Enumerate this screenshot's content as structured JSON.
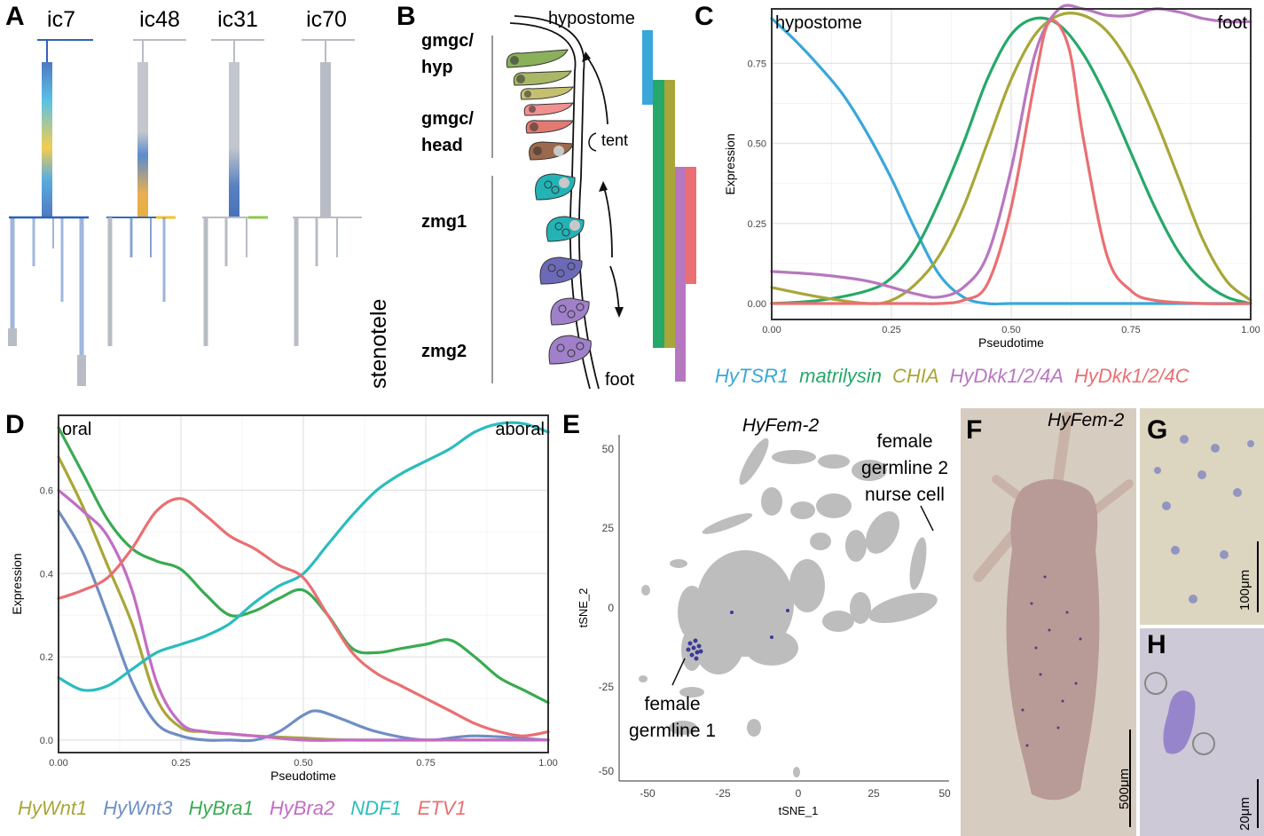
{
  "panels": {
    "A": {
      "letter": "A",
      "tree_titles": [
        "ic7",
        "ic48",
        "ic31",
        "ic70"
      ],
      "side_label": "stenotele"
    },
    "B": {
      "letter": "B",
      "top_label": "hypostome",
      "bottom_label": "foot",
      "tent_label": "tent",
      "stage_labels": [
        "gmgc/\nhyp",
        "gmgc/\nhead",
        "zmg1",
        "zmg2"
      ],
      "colors": {
        "blue": "#3aa7da",
        "green": "#26a86a",
        "olive": "#a8a638",
        "pink": "#ea6f72",
        "purple": "#b777c0"
      }
    },
    "C": {
      "letter": "C",
      "corner_left": "hypostome",
      "corner_right": "foot",
      "legend": [
        {
          "name": "HyTSR1",
          "color": "#3aa7da"
        },
        {
          "name": "matrilysin",
          "color": "#26a86a"
        },
        {
          "name": "CHIA",
          "color": "#a8a638"
        },
        {
          "name": "HyDkk1/2/4A",
          "color": "#b777c0"
        },
        {
          "name": "HyDkk1/2/4C",
          "color": "#ea6f72"
        }
      ]
    },
    "D": {
      "letter": "D",
      "corner_left": "oral",
      "corner_right": "aboral",
      "legend": [
        {
          "name": "HyWnt1",
          "color": "#a8a638"
        },
        {
          "name": "HyWnt3",
          "color": "#6e8ec4"
        },
        {
          "name": "HyBra1",
          "color": "#3aaa52"
        },
        {
          "name": "HyBra2",
          "color": "#c36cc4"
        },
        {
          "name": "NDF1",
          "color": "#2bbcbf"
        },
        {
          "name": "ETV1",
          "color": "#ea6f72"
        }
      ]
    },
    "E": {
      "letter": "E",
      "title": "HyFem-2",
      "annotation_1": "female germline 1",
      "annotation_2": "female germline 2 nurse cell",
      "xlabel": "tSNE_1",
      "ylabel": "tSNE_2",
      "xticks": [
        "-50",
        "-25",
        "0",
        "25",
        "50"
      ],
      "yticks": [
        "50",
        "25",
        "0",
        "-25",
        "-50"
      ]
    },
    "F": {
      "letter": "F",
      "title": "HyFem-2",
      "scale": "500μm"
    },
    "G": {
      "letter": "G",
      "scale": "100μm"
    },
    "H": {
      "letter": "H",
      "scale": "20μm"
    }
  },
  "chart_data": [
    {
      "id": "C",
      "type": "line",
      "xlabel": "Pseudotime",
      "ylabel": "Expression",
      "xlim": [
        0,
        1
      ],
      "ylim": [
        -0.05,
        0.92
      ],
      "xticks": [
        "0.00",
        "0.25",
        "0.50",
        "0.75",
        "1.00"
      ],
      "yticks": [
        "0.00",
        "0.25",
        "0.50",
        "0.75"
      ],
      "grid": true,
      "series": [
        {
          "name": "HyTSR1",
          "color": "#3aa7da",
          "x": [
            0.0,
            0.05,
            0.1,
            0.15,
            0.2,
            0.25,
            0.3,
            0.35,
            0.4,
            0.45,
            0.5,
            0.6,
            0.7,
            0.8,
            0.9,
            1.0
          ],
          "y": [
            0.89,
            0.82,
            0.74,
            0.65,
            0.53,
            0.39,
            0.23,
            0.09,
            0.02,
            0.0,
            0.0,
            0.0,
            0.0,
            0.0,
            0.0,
            0.0
          ]
        },
        {
          "name": "matrilysin",
          "color": "#26a86a",
          "x": [
            0.0,
            0.1,
            0.2,
            0.25,
            0.3,
            0.35,
            0.4,
            0.45,
            0.5,
            0.55,
            0.6,
            0.65,
            0.7,
            0.75,
            0.8,
            0.85,
            0.9,
            0.95,
            1.0
          ],
          "y": [
            0.0,
            0.01,
            0.04,
            0.08,
            0.17,
            0.32,
            0.5,
            0.7,
            0.84,
            0.89,
            0.87,
            0.78,
            0.64,
            0.47,
            0.3,
            0.16,
            0.07,
            0.02,
            0.0
          ]
        },
        {
          "name": "CHIA",
          "color": "#a8a638",
          "x": [
            0.0,
            0.1,
            0.2,
            0.25,
            0.3,
            0.35,
            0.4,
            0.45,
            0.5,
            0.55,
            0.6,
            0.65,
            0.7,
            0.75,
            0.8,
            0.85,
            0.9,
            0.95,
            1.0
          ],
          "y": [
            0.05,
            0.02,
            0.0,
            0.01,
            0.06,
            0.15,
            0.3,
            0.5,
            0.7,
            0.84,
            0.9,
            0.9,
            0.85,
            0.74,
            0.58,
            0.39,
            0.2,
            0.07,
            0.01
          ]
        },
        {
          "name": "HyDkk1/2/4A",
          "color": "#b777c0",
          "x": [
            0.0,
            0.1,
            0.2,
            0.3,
            0.35,
            0.4,
            0.45,
            0.5,
            0.55,
            0.6,
            0.65,
            0.7,
            0.75,
            0.8,
            0.85,
            0.9,
            0.95,
            1.0
          ],
          "y": [
            0.1,
            0.09,
            0.07,
            0.03,
            0.02,
            0.05,
            0.15,
            0.42,
            0.78,
            0.92,
            0.92,
            0.9,
            0.9,
            0.92,
            0.91,
            0.89,
            0.88,
            0.88
          ]
        },
        {
          "name": "HyDkk1/2/4C",
          "color": "#ea6f72",
          "x": [
            0.0,
            0.2,
            0.3,
            0.35,
            0.4,
            0.45,
            0.5,
            0.55,
            0.58,
            0.62,
            0.65,
            0.7,
            0.75,
            0.8,
            0.9,
            1.0
          ],
          "y": [
            0.0,
            0.0,
            0.0,
            0.0,
            0.01,
            0.06,
            0.3,
            0.7,
            0.88,
            0.8,
            0.52,
            0.15,
            0.04,
            0.01,
            0.0,
            0.0
          ]
        }
      ]
    },
    {
      "id": "D",
      "type": "line",
      "xlabel": "Pseudotime",
      "ylabel": "Expression",
      "xlim": [
        0,
        1
      ],
      "ylim": [
        -0.03,
        0.78
      ],
      "xticks": [
        "0.00",
        "0.25",
        "0.50",
        "0.75",
        "1.00"
      ],
      "yticks": [
        "0.0",
        "0.2",
        "0.4",
        "0.6"
      ],
      "grid": true,
      "series": [
        {
          "name": "HyWnt1",
          "color": "#a8a638",
          "x": [
            0.0,
            0.05,
            0.1,
            0.15,
            0.2,
            0.25,
            0.3,
            0.35,
            0.4,
            0.5,
            0.6,
            0.8,
            1.0
          ],
          "y": [
            0.68,
            0.56,
            0.42,
            0.28,
            0.1,
            0.03,
            0.02,
            0.015,
            0.01,
            0.005,
            0.0,
            0.0,
            0.0
          ]
        },
        {
          "name": "HyWnt3",
          "color": "#6e8ec4",
          "x": [
            0.0,
            0.05,
            0.1,
            0.15,
            0.2,
            0.25,
            0.3,
            0.35,
            0.4,
            0.45,
            0.5,
            0.53,
            0.58,
            0.65,
            0.75,
            0.85,
            1.0
          ],
          "y": [
            0.55,
            0.45,
            0.3,
            0.14,
            0.04,
            0.01,
            0.0,
            0.0,
            0.0,
            0.02,
            0.06,
            0.07,
            0.05,
            0.02,
            0.0,
            0.01,
            0.0
          ]
        },
        {
          "name": "HyBra1",
          "color": "#3aaa52",
          "x": [
            0.0,
            0.05,
            0.1,
            0.15,
            0.2,
            0.25,
            0.3,
            0.35,
            0.4,
            0.45,
            0.5,
            0.55,
            0.6,
            0.65,
            0.7,
            0.75,
            0.8,
            0.85,
            0.9,
            0.95,
            1.0
          ],
          "y": [
            0.75,
            0.64,
            0.53,
            0.46,
            0.43,
            0.41,
            0.35,
            0.3,
            0.31,
            0.34,
            0.36,
            0.3,
            0.22,
            0.21,
            0.22,
            0.23,
            0.24,
            0.2,
            0.15,
            0.12,
            0.09
          ]
        },
        {
          "name": "HyBra2",
          "color": "#c36cc4",
          "x": [
            0.0,
            0.05,
            0.1,
            0.15,
            0.2,
            0.25,
            0.3,
            0.35,
            0.4,
            0.5,
            0.6,
            0.8,
            1.0
          ],
          "y": [
            0.6,
            0.55,
            0.49,
            0.36,
            0.14,
            0.04,
            0.02,
            0.015,
            0.01,
            0.0,
            0.0,
            0.0,
            0.0
          ]
        },
        {
          "name": "NDF1",
          "color": "#2bbcbf",
          "x": [
            0.0,
            0.05,
            0.1,
            0.15,
            0.2,
            0.25,
            0.3,
            0.35,
            0.4,
            0.45,
            0.5,
            0.55,
            0.6,
            0.65,
            0.7,
            0.75,
            0.8,
            0.85,
            0.9,
            0.95,
            1.0
          ],
          "y": [
            0.15,
            0.12,
            0.13,
            0.17,
            0.21,
            0.23,
            0.25,
            0.28,
            0.33,
            0.37,
            0.4,
            0.47,
            0.54,
            0.6,
            0.64,
            0.67,
            0.7,
            0.74,
            0.76,
            0.76,
            0.74
          ]
        },
        {
          "name": "ETV1",
          "color": "#ea6f72",
          "x": [
            0.0,
            0.05,
            0.1,
            0.15,
            0.2,
            0.25,
            0.3,
            0.35,
            0.4,
            0.45,
            0.5,
            0.55,
            0.6,
            0.65,
            0.7,
            0.75,
            0.8,
            0.85,
            0.9,
            0.95,
            1.0
          ],
          "y": [
            0.34,
            0.36,
            0.39,
            0.46,
            0.55,
            0.58,
            0.54,
            0.49,
            0.46,
            0.42,
            0.39,
            0.3,
            0.21,
            0.16,
            0.13,
            0.1,
            0.07,
            0.04,
            0.02,
            0.01,
            0.02
          ]
        }
      ]
    }
  ]
}
